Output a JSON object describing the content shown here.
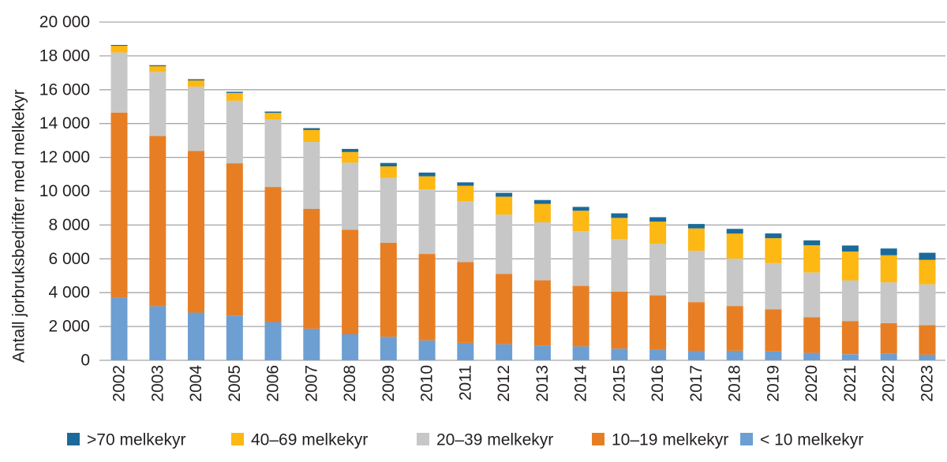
{
  "chart_data": {
    "type": "bar",
    "stacked": true,
    "title": "",
    "xlabel": "",
    "ylabel": "Antall jorbruksbedrifter med melkekyr",
    "ylim": [
      0,
      20000
    ],
    "ytick_step": 2000,
    "ytick_labels": [
      "0",
      "2 000",
      "4 000",
      "6 000",
      "8 000",
      "10 000",
      "12 000",
      "14 000",
      "16 000",
      "18 000",
      "20 000"
    ],
    "grid": true,
    "legend_position": "bottom",
    "categories": [
      "2002",
      "2003",
      "2004",
      "2005",
      "2006",
      "2007",
      "2008",
      "2009",
      "2010",
      "2011",
      "2012",
      "2013",
      "2014",
      "2015",
      "2016",
      "2017",
      "2018",
      "2019",
      "2020",
      "2021",
      "2022",
      "2023"
    ],
    "series": [
      {
        "name": "< 10 melkekyr",
        "color": "#6d9fd3",
        "values": [
          3700,
          3200,
          2820,
          2650,
          2260,
          1870,
          1540,
          1390,
          1180,
          1030,
          950,
          870,
          820,
          690,
          610,
          560,
          560,
          520,
          440,
          360,
          380,
          330
        ]
      },
      {
        "name": "10–19 melkekyr",
        "color": "#e87e24",
        "values": [
          10950,
          10070,
          9560,
          9000,
          7990,
          7080,
          6180,
          5560,
          5110,
          4780,
          4160,
          3860,
          3580,
          3370,
          3230,
          2880,
          2650,
          2490,
          2110,
          1960,
          1820,
          1750
        ]
      },
      {
        "name": "20–39 melkekyr",
        "color": "#c7c7c7",
        "values": [
          3550,
          3780,
          3800,
          3700,
          3990,
          3960,
          3960,
          3850,
          3810,
          3580,
          3500,
          3430,
          3240,
          3120,
          3040,
          3040,
          2800,
          2730,
          2640,
          2410,
          2410,
          2410
        ]
      },
      {
        "name": "40–69 melkekyr",
        "color": "#fdb813",
        "values": [
          400,
          340,
          370,
          460,
          390,
          710,
          640,
          670,
          780,
          930,
          1060,
          1090,
          1200,
          1240,
          1320,
          1320,
          1480,
          1480,
          1610,
          1700,
          1600,
          1450
        ]
      },
      {
        "name": ">70 melkekyr",
        "color": "#1b6a99",
        "values": [
          50,
          60,
          70,
          70,
          80,
          110,
          180,
          200,
          220,
          200,
          230,
          230,
          230,
          270,
          260,
          260,
          280,
          280,
          290,
          360,
          400,
          420
        ]
      }
    ],
    "legend_items": [
      {
        "label": ">70 melkekyr",
        "color": "#1b6a99"
      },
      {
        "label": "40–69 melkekyr",
        "color": "#fdb813"
      },
      {
        "label": "20–39 melkekyr",
        "color": "#c7c7c7"
      },
      {
        "label": "10–19 melkekyr",
        "color": "#e87e24"
      },
      {
        "label": "< 10 melkekyr",
        "color": "#6d9fd3"
      }
    ],
    "colors": {
      "gridline": "#a6a6a6",
      "text": "#231f20"
    }
  }
}
